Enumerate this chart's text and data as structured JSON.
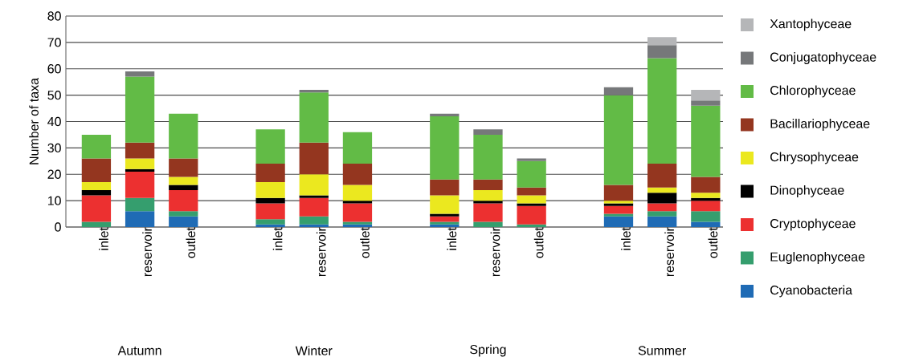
{
  "chart_data": {
    "type": "bar",
    "stacked": true,
    "ylabel": "Number of taxa",
    "categories": [
      "inlet",
      "reservoir",
      "outlet",
      null,
      "inlet",
      "reservoir",
      "outlet",
      null,
      "inlet",
      "reservoir",
      "outlet",
      null,
      "inlet",
      "reservoir",
      "outlet"
    ],
    "annotations": [
      "Autumn",
      "Winter",
      "Spring",
      "Summer"
    ],
    "series": [
      {
        "name": "Cyanobacteria",
        "color": "#1f6bb5",
        "values": [
          0,
          6,
          4,
          null,
          1,
          1,
          1,
          null,
          1,
          0,
          0,
          null,
          4,
          4,
          2
        ]
      },
      {
        "name": "Euglenophyceae",
        "color": "#359e6e",
        "values": [
          2,
          5,
          2,
          null,
          2,
          3,
          1,
          null,
          1,
          2,
          1,
          null,
          1,
          2,
          4
        ]
      },
      {
        "name": "Cryptophyceae",
        "color": "#ec3030",
        "values": [
          10,
          10,
          8,
          null,
          6,
          7,
          7,
          null,
          2,
          7,
          7,
          null,
          3,
          3,
          4
        ]
      },
      {
        "name": "Dinophyceae",
        "color": "#000000",
        "values": [
          2,
          1,
          2,
          null,
          2,
          1,
          1,
          null,
          1,
          1,
          1,
          null,
          1,
          4,
          1
        ]
      },
      {
        "name": "Chrysophyceae",
        "color": "#ebe81f",
        "values": [
          3,
          4,
          3,
          null,
          6,
          8,
          6,
          null,
          7,
          4,
          3,
          null,
          1,
          2,
          2
        ]
      },
      {
        "name": "Bacillariophyceae",
        "color": "#94361f",
        "values": [
          9,
          6,
          7,
          null,
          7,
          12,
          8,
          null,
          6,
          4,
          3,
          null,
          6,
          9,
          6
        ]
      },
      {
        "name": "Chlorophyceae",
        "color": "#62bb46",
        "values": [
          9,
          25,
          17,
          null,
          13,
          19,
          12,
          null,
          24,
          17,
          10,
          null,
          34,
          40,
          27
        ]
      },
      {
        "name": "Conjugatophyceae",
        "color": "#76787a",
        "values": [
          0,
          2,
          0,
          null,
          0,
          1,
          0,
          null,
          1,
          2,
          1,
          null,
          3,
          5,
          2
        ]
      },
      {
        "name": "Xantophyceae",
        "color": "#b5b6b8",
        "values": [
          0,
          0,
          0,
          null,
          0,
          0,
          0,
          null,
          0,
          0,
          0,
          null,
          0,
          3,
          4
        ]
      }
    ],
    "ylim": [
      0,
      80
    ],
    "yticks": [
      0,
      10,
      20,
      30,
      40,
      50,
      60,
      70,
      80
    ],
    "grid": "y",
    "legend": "right"
  }
}
